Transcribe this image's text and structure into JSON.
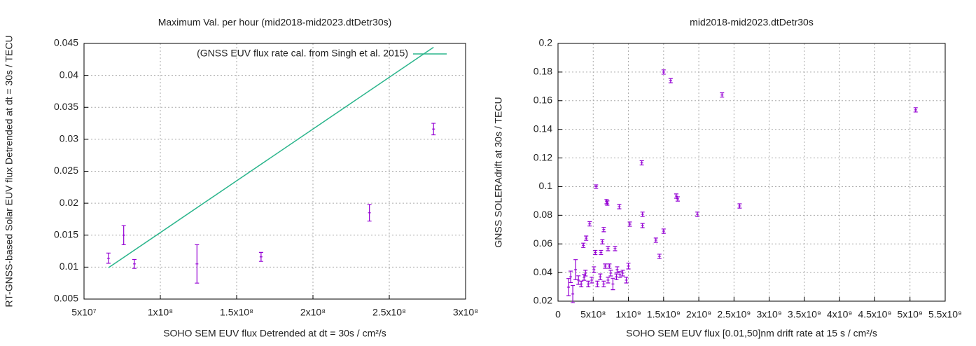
{
  "chart_data": [
    {
      "type": "scatter",
      "title": "Maximum Val. per hour (mid2018-mid2023.dtDetr30s)",
      "x_label": "SOHO SEM EUV flux Detrended at dt = 30s / cm²/s",
      "y_label": "RT-GNSS-based Solar EUV flux Detrended at dt = 30s / TECU",
      "xlim": [
        50000000,
        300000000
      ],
      "xticks": [
        {
          "value": 50000000,
          "label": "5x10⁷"
        },
        {
          "value": 100000000,
          "label": "1x10⁸"
        },
        {
          "value": 150000000,
          "label": "1.5x10⁸"
        },
        {
          "value": 200000000,
          "label": "2x10⁸"
        },
        {
          "value": 250000000,
          "label": "2.5x10⁸"
        },
        {
          "value": 300000000,
          "label": "3x10⁸"
        }
      ],
      "ylim": [
        0.005,
        0.045
      ],
      "yticks": [
        0.005,
        0.01,
        0.015,
        0.02,
        0.025,
        0.03,
        0.035,
        0.04,
        0.045
      ],
      "grid": true,
      "legend": "top right",
      "series": [
        {
          "color": "#9400d3",
          "x": [
            66000000,
            76000000,
            83000000,
            124000000,
            166000000,
            237000000,
            279000000
          ],
          "values": [
            0.0114,
            0.015,
            0.0105,
            0.0105,
            0.0116,
            0.0185,
            0.0316
          ],
          "errors": [
            0.0008,
            0.0015,
            0.0007,
            0.003,
            0.0007,
            0.0013,
            0.0009
          ]
        },
        {
          "name": "(GNSS EUV flux rate cal. from Singh et al. 2015)",
          "color": "#2bb58c",
          "style": "line",
          "x": [
            66000000,
            279000000
          ],
          "values": [
            0.0099,
            0.0444
          ]
        }
      ]
    },
    {
      "type": "scatter",
      "title": "mid2018-mid2023.dtDetr30s",
      "x_label": "SOHO SEM EUV flux [0.01,50]nm drift rate at 15 s / cm²/s",
      "y_label": "GNSS SOLERAdrift at 30s / TECU",
      "xlim": [
        0,
        5500000000
      ],
      "xticks": [
        0,
        {
          "value": 500000000,
          "label": "5x10⁸"
        },
        {
          "value": 1000000000,
          "label": "1x10⁹"
        },
        {
          "value": 1500000000,
          "label": "1.5x10⁹"
        },
        {
          "value": 2000000000,
          "label": "2x10⁹"
        },
        {
          "value": 2500000000,
          "label": "2.5x10⁹"
        },
        {
          "value": 3000000000,
          "label": "3x10⁹"
        },
        {
          "value": 3500000000,
          "label": "3.5x10⁹"
        },
        {
          "value": 4000000000,
          "label": "4x10⁹"
        },
        {
          "value": 4500000000,
          "label": "4.5x10⁹"
        },
        {
          "value": 5000000000,
          "label": "5x10⁹"
        },
        {
          "value": 5500000000,
          "label": "5.5x10⁹"
        }
      ],
      "ylim": [
        0.02,
        0.2
      ],
      "yticks": [
        0.02,
        0.04,
        0.06,
        0.08,
        0.1,
        0.12,
        0.14,
        0.16,
        0.18,
        0.2
      ],
      "grid": true,
      "series": [
        {
          "color": "#9400d3",
          "x": [
            150000000,
            180000000,
            210000000,
            250000000,
            290000000,
            330000000,
            370000000,
            390000000,
            360000000,
            400000000,
            450000000,
            430000000,
            480000000,
            510000000,
            530000000,
            540000000,
            560000000,
            600000000,
            610000000,
            630000000,
            650000000,
            650000000,
            670000000,
            690000000,
            700000000,
            710000000,
            710000000,
            730000000,
            750000000,
            780000000,
            810000000,
            830000000,
            840000000,
            870000000,
            880000000,
            920000000,
            970000000,
            1000000000,
            1020000000,
            1190000000,
            1200000000,
            1200000000,
            1390000000,
            1440000000,
            1500000000,
            1500000000,
            1600000000,
            1680000000,
            1700000000,
            1980000000,
            2330000000,
            2580000000,
            5080000000
          ],
          "values": [
            0.0298,
            0.037,
            0.025,
            0.042,
            0.0347,
            0.032,
            0.0366,
            0.0396,
            0.059,
            0.064,
            0.074,
            0.032,
            0.0347,
            0.042,
            0.054,
            0.1,
            0.032,
            0.037,
            0.054,
            0.0615,
            0.07,
            0.032,
            0.0445,
            0.0895,
            0.0885,
            0.0567,
            0.0347,
            0.0445,
            0.0396,
            0.032,
            0.0567,
            0.037,
            0.042,
            0.086,
            0.0386,
            0.0396,
            0.0347,
            0.0445,
            0.0738,
            0.1166,
            0.0807,
            0.0728,
            0.0626,
            0.0513,
            0.0689,
            0.18,
            0.174,
            0.0934,
            0.0914,
            0.0807,
            0.164,
            0.0865,
            0.1536
          ],
          "errors": [
            0.006,
            0.004,
            0.006,
            0.007,
            0.003,
            0.002,
            0.002,
            0.002,
            0.0015,
            0.0015,
            0.0015,
            0.002,
            0.002,
            0.002,
            0.0015,
            0.0012,
            0.002,
            0.002,
            0.0015,
            0.0015,
            0.0015,
            0.002,
            0.0015,
            0.0015,
            0.0015,
            0.0015,
            0.002,
            0.0015,
            0.002,
            0.004,
            0.0015,
            0.002,
            0.002,
            0.0015,
            0.002,
            0.002,
            0.002,
            0.002,
            0.0015,
            0.0015,
            0.0015,
            0.0015,
            0.0015,
            0.0015,
            0.0015,
            0.0015,
            0.0015,
            0.0015,
            0.0015,
            0.0015,
            0.0015,
            0.0015,
            0.0015
          ]
        }
      ]
    }
  ]
}
